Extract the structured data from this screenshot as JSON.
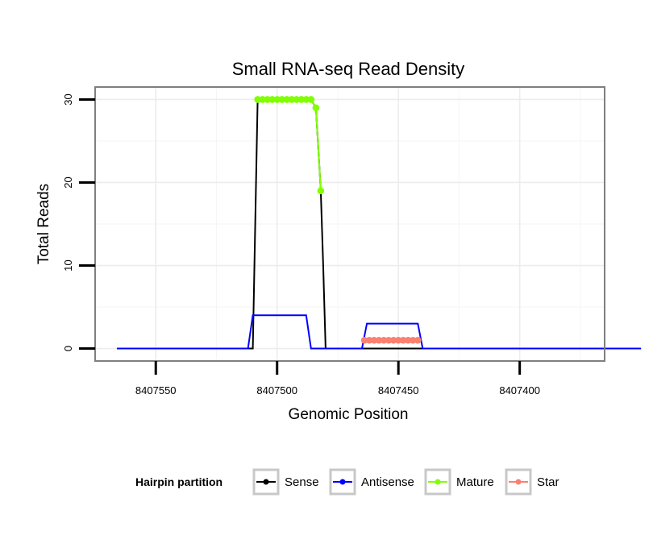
{
  "chart_data": {
    "type": "line",
    "title": "Small RNA-seq Read Density",
    "xlabel": "Genomic Position",
    "ylabel": "Total Reads",
    "x_reversed": true,
    "xlim": [
      8407575,
      8407365
    ],
    "ylim": [
      -1.5,
      31.5
    ],
    "x_ticks": [
      8407550,
      8407500,
      8407450,
      8407400
    ],
    "x_tick_labels": [
      "8407550",
      "8407500",
      "8407450",
      "8407400"
    ],
    "y_ticks": [
      0,
      10,
      20,
      30
    ],
    "y_tick_labels": [
      "0",
      "10",
      "20",
      "30"
    ],
    "grid": true,
    "legend": {
      "title": "Hairpin partition",
      "position": "bottom",
      "entries": [
        {
          "label": "Sense",
          "color": "#000000"
        },
        {
          "label": "Antisense",
          "color": "#0000ff"
        },
        {
          "label": "Mature",
          "color": "#80ff00"
        },
        {
          "label": "Star",
          "color": "#fa8072"
        }
      ]
    },
    "series": [
      {
        "name": "Sense",
        "color": "#000000",
        "x": [
          8407566,
          8407510,
          8407508,
          8407488,
          8407486,
          8407484,
          8407483,
          8407482,
          8407481,
          8407480,
          8407350
        ],
        "y": [
          0,
          0,
          30,
          30,
          30,
          29,
          24,
          19,
          10,
          0,
          0
        ]
      },
      {
        "name": "Antisense",
        "color": "#0000ff",
        "x": [
          8407566,
          8407512,
          8407510,
          8407488,
          8407486,
          8407465,
          8407463,
          8407442,
          8407440,
          8407350
        ],
        "y": [
          0,
          0,
          4,
          4,
          0,
          0,
          3,
          3,
          0,
          0
        ]
      },
      {
        "name": "Mature",
        "color": "#80ff00",
        "x": [
          8407508,
          8407506,
          8407504,
          8407502,
          8407500,
          8407498,
          8407496,
          8407494,
          8407492,
          8407490,
          8407488,
          8407486,
          8407484,
          8407482
        ],
        "y": [
          30,
          30,
          30,
          30,
          30,
          30,
          30,
          30,
          30,
          30,
          30,
          30,
          29,
          19
        ]
      },
      {
        "name": "Star",
        "color": "#fa8072",
        "x": [
          8407464,
          8407462,
          8407460,
          8407458,
          8407456,
          8407454,
          8407452,
          8407450,
          8407448,
          8407446,
          8407444,
          8407442
        ],
        "y": [
          1,
          1,
          1,
          1,
          1,
          1,
          1,
          1,
          1,
          1,
          1,
          1
        ]
      }
    ]
  }
}
